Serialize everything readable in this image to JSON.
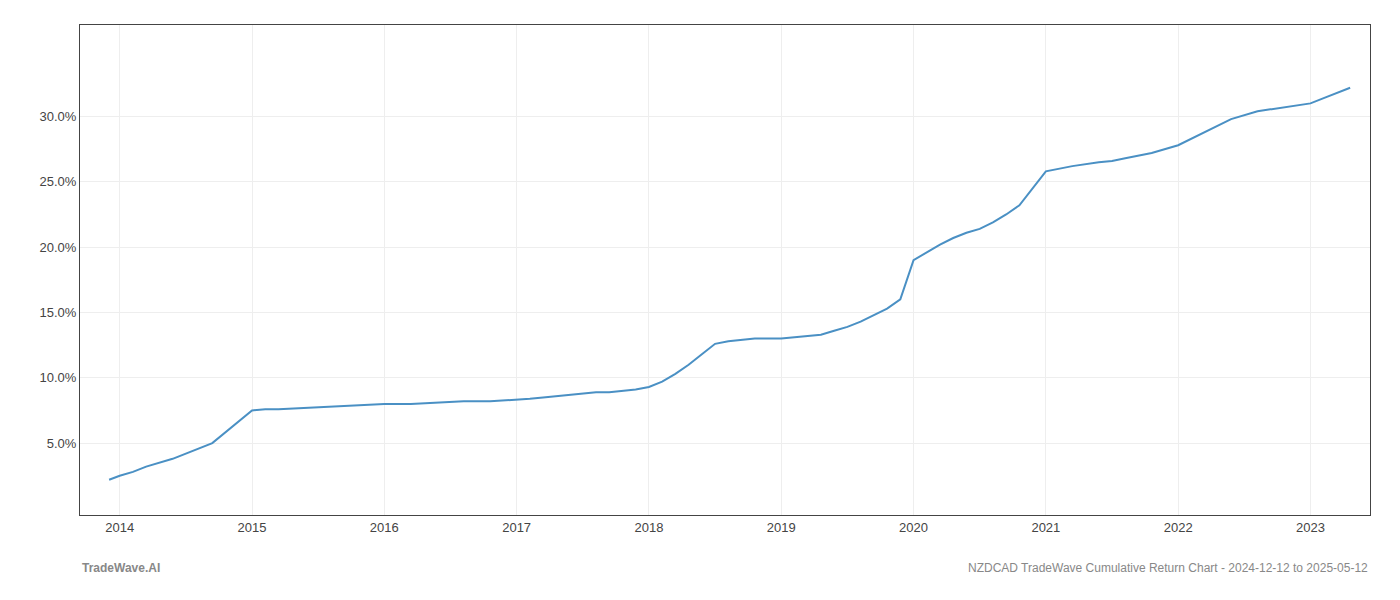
{
  "chart_data": {
    "type": "line",
    "x": [
      2013.92,
      2014.0,
      2014.1,
      2014.2,
      2014.4,
      2014.7,
      2015.0,
      2015.1,
      2015.2,
      2015.4,
      2015.6,
      2015.8,
      2016.0,
      2016.2,
      2016.4,
      2016.6,
      2016.8,
      2017.0,
      2017.1,
      2017.2,
      2017.3,
      2017.4,
      2017.5,
      2017.6,
      2017.7,
      2017.8,
      2017.9,
      2018.0,
      2018.1,
      2018.2,
      2018.3,
      2018.4,
      2018.5,
      2018.6,
      2018.7,
      2018.8,
      2019.0,
      2019.1,
      2019.2,
      2019.3,
      2019.4,
      2019.5,
      2019.6,
      2019.7,
      2019.8,
      2019.9,
      2020.0,
      2020.1,
      2020.2,
      2020.3,
      2020.4,
      2020.5,
      2020.6,
      2020.7,
      2020.8,
      2021.0,
      2021.2,
      2021.4,
      2021.5,
      2021.6,
      2021.8,
      2022.0,
      2022.2,
      2022.4,
      2022.6,
      2022.8,
      2023.0,
      2023.1,
      2023.2,
      2023.3
    ],
    "values": [
      0.022,
      0.025,
      0.028,
      0.032,
      0.038,
      0.05,
      0.075,
      0.076,
      0.076,
      0.077,
      0.078,
      0.079,
      0.08,
      0.08,
      0.081,
      0.082,
      0.082,
      0.083,
      0.084,
      0.085,
      0.086,
      0.087,
      0.088,
      0.089,
      0.089,
      0.09,
      0.091,
      0.093,
      0.097,
      0.103,
      0.11,
      0.118,
      0.126,
      0.128,
      0.129,
      0.13,
      0.13,
      0.131,
      0.132,
      0.133,
      0.136,
      0.139,
      0.143,
      0.148,
      0.153,
      0.16,
      0.19,
      0.196,
      0.202,
      0.207,
      0.211,
      0.214,
      0.219,
      0.225,
      0.232,
      0.258,
      0.262,
      0.265,
      0.266,
      0.268,
      0.272,
      0.278,
      0.288,
      0.298,
      0.304,
      0.307,
      0.31,
      0.314,
      0.318,
      0.322
    ],
    "color": "#4a90c4",
    "xlim": [
      2013.7,
      2023.45
    ],
    "ylim": [
      -0.005,
      0.37
    ],
    "xticks": [
      2014,
      2015,
      2016,
      2017,
      2018,
      2019,
      2020,
      2021,
      2022,
      2023
    ],
    "yticks": [
      {
        "value": 0.05,
        "label": "5.0%"
      },
      {
        "value": 0.1,
        "label": "10.0%"
      },
      {
        "value": 0.15,
        "label": "15.0%"
      },
      {
        "value": 0.2,
        "label": "20.0%"
      },
      {
        "value": 0.25,
        "label": "25.0%"
      },
      {
        "value": 0.3,
        "label": "30.0%"
      }
    ],
    "grid": true,
    "annotations": [
      "TradeWave.AI",
      "NZDCAD TradeWave Cumulative Return Chart - 2024-12-12 to 2025-05-12"
    ]
  }
}
